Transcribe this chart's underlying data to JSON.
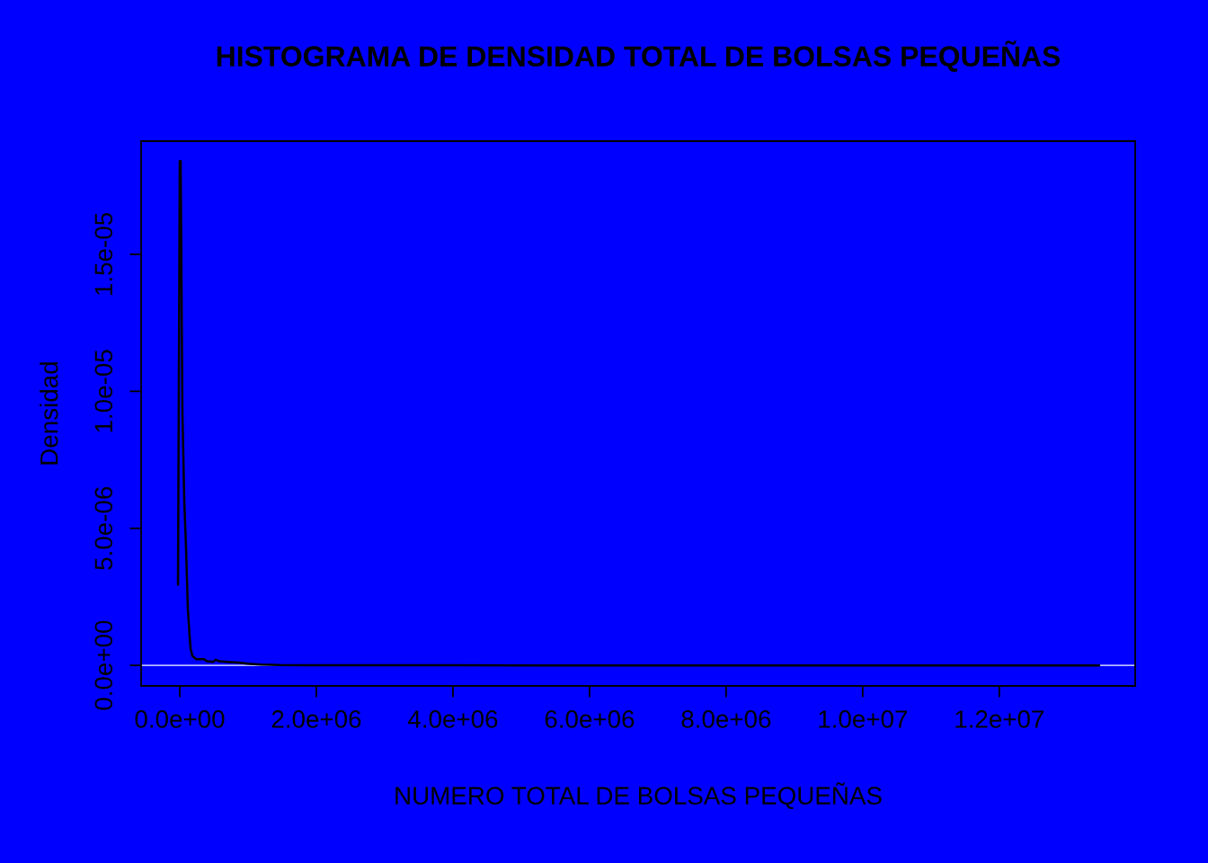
{
  "chart_data": {
    "type": "line",
    "title": "HISTOGRAMA DE DENSIDAD TOTAL DE BOLSAS PEQUEÑAS",
    "xlabel": "NUMERO TOTAL DE BOLSAS PEQUEÑAS",
    "ylabel": "Densidad",
    "series": [
      {
        "color": "#000000",
        "x": [
          -26000,
          -13000,
          0,
          13000,
          26000,
          39000,
          53000,
          66000,
          79000,
          92000,
          105000,
          118000,
          132000,
          145000,
          158000,
          184000,
          237000,
          355000,
          395000,
          487000,
          526000,
          579000,
          724000,
          855000,
          987000,
          1180000,
          1450000,
          1840000,
          2630000,
          5260000,
          13460000
        ],
        "values": [
          2.95e-06,
          1.06e-05,
          1.84e-05,
          1.84e-05,
          1.38e-05,
          9.2e-06,
          7.6e-06,
          6e-06,
          5.15e-06,
          4.27e-06,
          3.2e-06,
          2.07e-06,
          1.54e-06,
          1.05e-06,
          6.2e-07,
          3.5e-07,
          2.3e-07,
          2.3e-07,
          1.5e-07,
          1.3e-07,
          2e-07,
          1.5e-07,
          1.2e-07,
          1e-07,
          6e-08,
          3e-08,
          1e-08,
          5e-09,
          2e-09,
          0,
          0
        ]
      }
    ],
    "xlim": [
      -566000,
      13990000
    ],
    "ylim": [
      -7.5e-07,
      1.913e-05
    ],
    "xticks": [
      {
        "value": 0,
        "label": "0.0e+00"
      },
      {
        "value": 2000000,
        "label": "2.0e+06"
      },
      {
        "value": 4000000,
        "label": "4.0e+06"
      },
      {
        "value": 6000000,
        "label": "6.0e+06"
      },
      {
        "value": 8000000,
        "label": "8.0e+06"
      },
      {
        "value": 10000000,
        "label": "1.0e+07"
      },
      {
        "value": 12000000,
        "label": "1.2e+07"
      }
    ],
    "yticks": [
      {
        "value": 0,
        "label": "0.0e+00"
      },
      {
        "value": 5e-06,
        "label": "5.0e-06"
      },
      {
        "value": 1e-05,
        "label": "1.0e-05"
      },
      {
        "value": 1.5e-05,
        "label": "1.5e-05"
      }
    ],
    "ref_lines": [
      {
        "axis": "y",
        "value": 0,
        "label": null,
        "color": "#ffffff"
      }
    ],
    "grid": false,
    "legend": false,
    "marker": "none",
    "line_style": "solid"
  }
}
